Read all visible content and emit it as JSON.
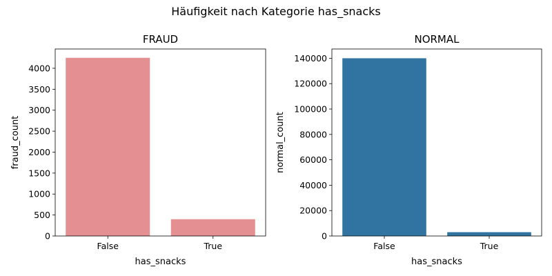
{
  "suptitle": "Häufigkeit nach Kategorie has_snacks",
  "chart_data": [
    {
      "type": "bar",
      "title": "FRAUD",
      "xlabel": "has_snacks",
      "ylabel": "fraud_count",
      "categories": [
        "False",
        "True"
      ],
      "values": [
        4250,
        400
      ],
      "ylim": [
        0,
        4460
      ],
      "yticks": [
        0,
        500,
        1000,
        1500,
        2000,
        2500,
        3000,
        3500,
        4000
      ],
      "color": "#e48f91",
      "grid": false
    },
    {
      "type": "bar",
      "title": "NORMAL",
      "xlabel": "has_snacks",
      "ylabel": "normal_count",
      "categories": [
        "False",
        "True"
      ],
      "values": [
        140000,
        3000
      ],
      "ylim": [
        0,
        147300
      ],
      "yticks": [
        0,
        20000,
        40000,
        60000,
        80000,
        100000,
        120000,
        140000
      ],
      "color": "#3274a1",
      "grid": false
    }
  ]
}
